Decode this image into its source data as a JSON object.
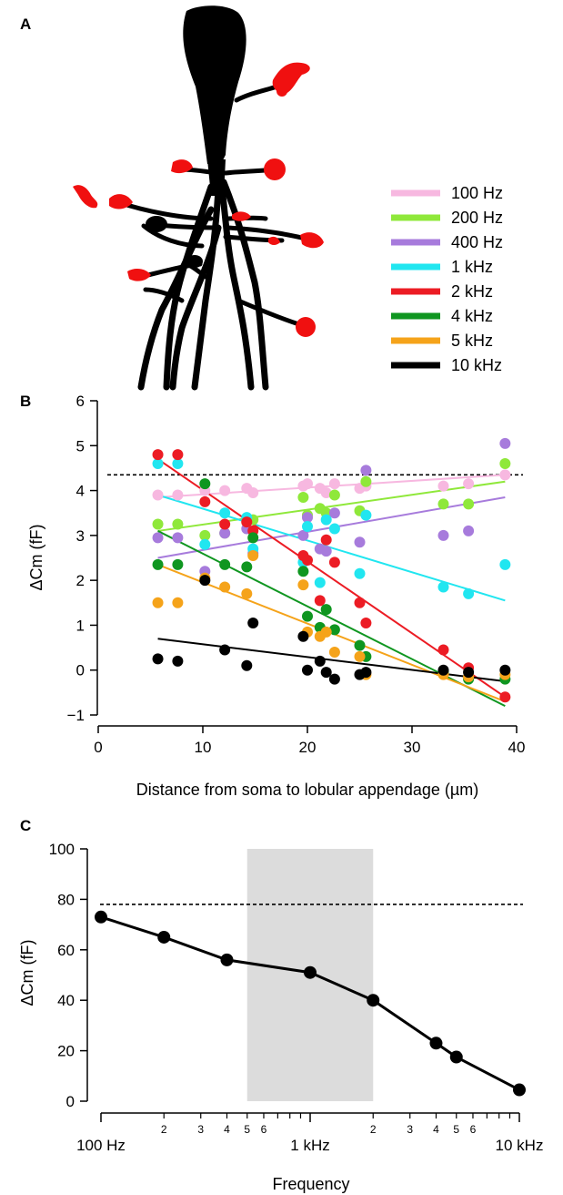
{
  "panels": {
    "a": "A",
    "b": "B",
    "c": "C"
  },
  "legend": [
    {
      "label": "100 Hz",
      "color": "#f7b8e0"
    },
    {
      "label": "200 Hz",
      "color": "#8fe83a"
    },
    {
      "label": "400 Hz",
      "color": "#a77bdc"
    },
    {
      "label": "1 kHz",
      "color": "#21e6f0"
    },
    {
      "label": "2 kHz",
      "color": "#ec1c24"
    },
    {
      "label": "4 kHz",
      "color": "#0f9620"
    },
    {
      "label": "5 kHz",
      "color": "#f5a31a"
    },
    {
      "label": "10 kHz",
      "color": "#000000"
    }
  ],
  "chart_data": [
    {
      "type": "scatter",
      "xlabel": "Distance from soma to lobular appendage (µm)",
      "ylabel": "ΔCm (fF)",
      "xlim": [
        -2,
        41
      ],
      "ylim": [
        -1.2,
        6
      ],
      "xticks": [
        0,
        10,
        20,
        30,
        40
      ],
      "yticks": [
        -1,
        0,
        1,
        2,
        3,
        4,
        5,
        6
      ],
      "reference_line": 4.35,
      "series": [
        {
          "name": "100 Hz",
          "color": "#f7b8e0",
          "x": [
            5.7,
            7.6,
            10.2,
            12.1,
            14.2,
            14.8,
            19.6,
            20.0,
            21.2,
            21.8,
            22.6,
            25.0,
            25.6,
            33.0,
            35.4,
            38.9
          ],
          "y": [
            3.9,
            3.9,
            4.0,
            4.0,
            4.05,
            3.95,
            4.1,
            4.15,
            4.05,
            3.95,
            4.15,
            4.05,
            4.1,
            4.1,
            4.15,
            4.35
          ],
          "fit": [
            [
              5.7,
              3.85
            ],
            [
              38.9,
              4.35
            ]
          ]
        },
        {
          "name": "200 Hz",
          "color": "#8fe83a",
          "x": [
            5.7,
            7.6,
            10.2,
            12.1,
            14.2,
            14.8,
            19.6,
            20.0,
            21.2,
            21.8,
            22.6,
            25.0,
            25.6,
            33.0,
            35.4,
            38.9
          ],
          "y": [
            3.25,
            3.25,
            3.0,
            3.05,
            3.3,
            3.35,
            3.85,
            3.45,
            3.6,
            3.5,
            3.9,
            3.55,
            4.2,
            3.7,
            3.7,
            4.6
          ],
          "fit": [
            [
              5.7,
              3.1
            ],
            [
              38.9,
              4.2
            ]
          ]
        },
        {
          "name": "400 Hz",
          "color": "#a77bdc",
          "x": [
            5.7,
            7.6,
            10.2,
            12.1,
            14.2,
            14.8,
            19.6,
            20.0,
            21.2,
            21.8,
            22.6,
            25.0,
            25.6,
            33.0,
            35.4,
            38.9
          ],
          "y": [
            2.95,
            2.95,
            2.2,
            3.05,
            3.15,
            2.6,
            3.0,
            3.4,
            2.7,
            2.65,
            3.5,
            2.85,
            4.45,
            3.0,
            3.1,
            5.05
          ],
          "fit": [
            [
              5.7,
              2.5
            ],
            [
              38.9,
              3.85
            ]
          ]
        },
        {
          "name": "1 kHz",
          "color": "#21e6f0",
          "x": [
            5.7,
            7.6,
            10.2,
            12.1,
            14.2,
            14.8,
            19.6,
            20.0,
            21.2,
            21.8,
            22.6,
            25.0,
            25.6,
            33.0,
            35.4,
            38.9
          ],
          "y": [
            4.6,
            4.6,
            2.8,
            3.5,
            3.4,
            2.7,
            2.4,
            3.2,
            1.95,
            3.35,
            3.15,
            2.15,
            3.45,
            1.85,
            1.7,
            2.35
          ],
          "fit": [
            [
              5.7,
              3.9
            ],
            [
              38.9,
              1.55
            ]
          ]
        },
        {
          "name": "2 kHz",
          "color": "#ec1c24",
          "x": [
            5.7,
            7.6,
            10.2,
            12.1,
            14.2,
            14.8,
            19.6,
            20.0,
            21.2,
            21.8,
            22.6,
            25.0,
            25.6,
            33.0,
            35.4,
            38.9
          ],
          "y": [
            4.8,
            4.8,
            3.75,
            3.25,
            3.3,
            3.1,
            2.55,
            2.45,
            1.55,
            2.9,
            2.4,
            1.5,
            1.05,
            0.45,
            0.05,
            -0.6
          ],
          "fit": [
            [
              5.7,
              4.7
            ],
            [
              38.9,
              -0.6
            ]
          ]
        },
        {
          "name": "4 kHz",
          "color": "#0f9620",
          "x": [
            5.7,
            7.6,
            10.2,
            12.1,
            14.2,
            14.8,
            19.6,
            20.0,
            21.2,
            21.8,
            22.6,
            25.0,
            25.6,
            33.0,
            35.4,
            38.9
          ],
          "y": [
            2.35,
            2.35,
            4.15,
            2.35,
            2.3,
            2.95,
            2.2,
            1.2,
            0.95,
            1.35,
            0.9,
            0.55,
            0.3,
            -0.05,
            -0.2,
            -0.2
          ],
          "fit": [
            [
              5.7,
              3.1
            ],
            [
              38.9,
              -0.8
            ]
          ]
        },
        {
          "name": "5 kHz",
          "color": "#f5a31a",
          "x": [
            5.7,
            7.6,
            10.2,
            12.1,
            14.2,
            14.8,
            19.6,
            20.0,
            21.2,
            21.8,
            22.6,
            25.0,
            25.6,
            33.0,
            35.4,
            38.9
          ],
          "y": [
            1.5,
            1.5,
            2.05,
            1.85,
            1.7,
            2.55,
            1.9,
            0.85,
            0.75,
            0.85,
            0.4,
            0.3,
            -0.1,
            -0.1,
            -0.15,
            -0.1
          ],
          "fit": [
            [
              5.7,
              2.35
            ],
            [
              38.9,
              -0.7
            ]
          ]
        },
        {
          "name": "10 kHz",
          "color": "#000000",
          "x": [
            5.7,
            7.6,
            10.2,
            12.1,
            14.2,
            14.8,
            19.6,
            20.0,
            21.2,
            21.8,
            22.6,
            25.0,
            25.6,
            33.0,
            35.4,
            38.9
          ],
          "y": [
            0.25,
            0.2,
            2.0,
            0.45,
            0.1,
            1.05,
            0.75,
            0.0,
            0.2,
            -0.05,
            -0.2,
            -0.1,
            -0.05,
            0.0,
            -0.05,
            0.0
          ],
          "fit": [
            [
              5.7,
              0.7
            ],
            [
              38.9,
              -0.25
            ]
          ]
        }
      ]
    },
    {
      "type": "line",
      "xscale": "log",
      "xlabel": "Frequency",
      "ylabel": "ΔCm (fF)",
      "xlim": [
        90,
        11000
      ],
      "ylim": [
        -2,
        100
      ],
      "yticks": [
        0,
        20,
        40,
        60,
        80,
        100
      ],
      "xtick_major": [
        {
          "value": 100,
          "label": "100 Hz"
        },
        {
          "value": 1000,
          "label": "1 kHz"
        },
        {
          "value": 10000,
          "label": "10 kHz"
        }
      ],
      "xtick_minor_labeled": [
        {
          "value": 200,
          "label": "2"
        },
        {
          "value": 300,
          "label": "3"
        },
        {
          "value": 400,
          "label": "4"
        },
        {
          "value": 500,
          "label": "5"
        },
        {
          "value": 600,
          "label": "6"
        },
        {
          "value": 2000,
          "label": "2"
        },
        {
          "value": 3000,
          "label": "3"
        },
        {
          "value": 4000,
          "label": "4"
        },
        {
          "value": 5000,
          "label": "5"
        },
        {
          "value": 6000,
          "label": "6"
        }
      ],
      "xtick_minor_unlabeled": [
        700,
        800,
        900,
        7000,
        8000,
        9000
      ],
      "shaded_range": [
        500,
        2000
      ],
      "reference_line": 78,
      "series": [
        {
          "x": [
            100,
            200,
            400,
            1000,
            2000,
            4000,
            5000,
            10000
          ],
          "y": [
            73,
            65,
            56,
            51,
            40,
            23,
            17.5,
            4.5
          ]
        }
      ]
    }
  ]
}
